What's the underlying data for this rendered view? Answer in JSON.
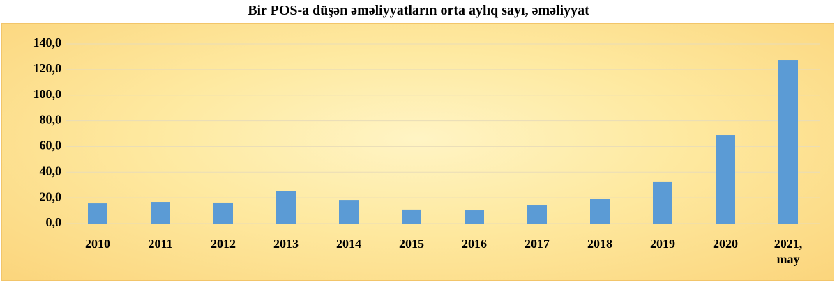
{
  "chart_data": {
    "type": "bar",
    "title": "Bir POS-a düşən əməliyyatların orta aylıq sayı, əməliyyat",
    "categories": [
      "2010",
      "2011",
      "2012",
      "2013",
      "2014",
      "2015",
      "2016",
      "2017",
      "2018",
      "2019",
      "2020",
      "2021, may"
    ],
    "values": [
      15.7,
      16.8,
      16.3,
      25.5,
      18.4,
      10.9,
      10.3,
      14.1,
      19.0,
      32.6,
      68.9,
      127.5
    ],
    "color": "#5b9bd5",
    "ylim": [
      0,
      140
    ],
    "yticks": [
      {
        "value": 0,
        "label": "0,0"
      },
      {
        "value": 20,
        "label": "20,0"
      },
      {
        "value": 40,
        "label": "40,0"
      },
      {
        "value": 60,
        "label": "60,0"
      },
      {
        "value": 80,
        "label": "80,0"
      },
      {
        "value": 100,
        "label": "100,0"
      },
      {
        "value": 120,
        "label": "120,0"
      },
      {
        "value": 140,
        "label": "140,0"
      }
    ],
    "grid": true
  }
}
